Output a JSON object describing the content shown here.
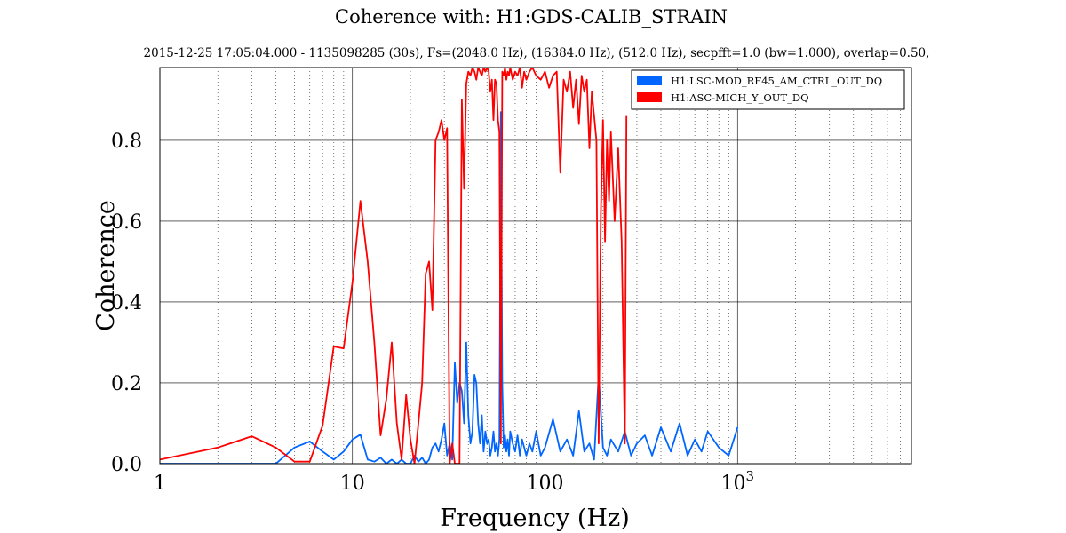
{
  "chart_data": {
    "type": "line",
    "title": "Coherence with: H1:GDS-CALIB_STRAIN",
    "subtitle": "2015-12-25 17:05:04.000 - 1135098285 (30s), Fs=(2048.0 Hz), (16384.0 Hz), (512.0 Hz), secpfft=1.0 (bw=1.000), overlap=0.50,",
    "xlabel": "Frequency (Hz)",
    "ylabel": "Coherence",
    "x_scale": "log",
    "xlim": [
      1,
      8000
    ],
    "ylim": [
      0,
      0.98
    ],
    "grid": true,
    "legend_position": "top-right",
    "x_ticks": [
      {
        "value": 1,
        "label": "1"
      },
      {
        "value": 10,
        "label": "10"
      },
      {
        "value": 100,
        "label": "100"
      },
      {
        "value": 1000,
        "label": "10",
        "sup": "3"
      }
    ],
    "y_ticks": [
      {
        "value": 0.0,
        "label": "0.0"
      },
      {
        "value": 0.2,
        "label": "0.2"
      },
      {
        "value": 0.4,
        "label": "0.4"
      },
      {
        "value": 0.6,
        "label": "0.6"
      },
      {
        "value": 0.8,
        "label": "0.8"
      }
    ],
    "series": [
      {
        "name": "H1:LSC-MOD_RF45_AM_CTRL_OUT_DQ",
        "color": "#0066ff",
        "x": [
          1,
          2,
          3,
          4,
          5,
          6,
          7,
          8,
          9,
          10,
          11,
          12,
          13,
          14,
          15,
          16,
          17,
          18,
          19,
          20,
          21,
          22,
          23,
          24,
          25,
          26,
          27,
          28,
          29,
          30,
          31,
          32,
          33,
          34,
          35,
          36,
          37,
          38,
          39,
          40,
          41,
          42,
          43,
          44,
          45,
          46,
          47,
          48,
          49,
          50,
          51,
          52,
          53,
          54,
          55,
          56,
          57,
          58,
          59,
          60,
          61,
          62,
          63,
          64,
          65,
          66,
          68,
          70,
          72,
          74,
          76,
          78,
          80,
          83,
          86,
          90,
          95,
          100,
          110,
          120,
          130,
          140,
          150,
          160,
          170,
          180,
          190,
          200,
          210,
          220,
          240,
          260,
          280,
          300,
          330,
          360,
          400,
          450,
          500,
          550,
          600,
          650,
          700,
          800,
          900,
          1000
        ],
        "y": [
          0.0,
          0.0,
          0.0,
          0.0,
          0.04,
          0.055,
          0.03,
          0.01,
          0.03,
          0.06,
          0.072,
          0.01,
          0.005,
          0.015,
          0.0,
          0.01,
          0.0,
          0.01,
          0.0,
          0.0,
          0.02,
          0.005,
          0.015,
          0.0,
          0.01,
          0.04,
          0.05,
          0.03,
          0.06,
          0.1,
          0.02,
          0.05,
          0.01,
          0.25,
          0.15,
          0.2,
          0.18,
          0.1,
          0.3,
          0.12,
          0.05,
          0.08,
          0.22,
          0.2,
          0.1,
          0.05,
          0.12,
          0.03,
          0.08,
          0.05,
          0.06,
          0.02,
          0.04,
          0.08,
          0.03,
          0.05,
          0.02,
          0.06,
          0.87,
          0.2,
          0.04,
          0.07,
          0.03,
          0.06,
          0.02,
          0.08,
          0.05,
          0.03,
          0.07,
          0.02,
          0.06,
          0.04,
          0.02,
          0.05,
          0.03,
          0.08,
          0.02,
          0.04,
          0.11,
          0.03,
          0.06,
          0.02,
          0.13,
          0.03,
          0.05,
          0.01,
          0.22,
          0.04,
          0.02,
          0.06,
          0.03,
          0.08,
          0.02,
          0.05,
          0.07,
          0.02,
          0.09,
          0.03,
          0.1,
          0.02,
          0.06,
          0.03,
          0.08,
          0.04,
          0.02,
          0.09
        ]
      },
      {
        "name": "H1:ASC-MICH_Y_OUT_DQ",
        "color": "#ff0000",
        "x": [
          1,
          2,
          3,
          4,
          5,
          6,
          7,
          8,
          9,
          10,
          11,
          12,
          13,
          14,
          15,
          16,
          17,
          18,
          19,
          20,
          21,
          22,
          23,
          24,
          25,
          26,
          27,
          28,
          29,
          30,
          31,
          32,
          33,
          34,
          35,
          36,
          37,
          38,
          39,
          40,
          41,
          42,
          43,
          44,
          45,
          46,
          47,
          48,
          49,
          50,
          51,
          52,
          53,
          54,
          55,
          56,
          57,
          58,
          59,
          60,
          61,
          62,
          63,
          64,
          65,
          66,
          68,
          70,
          72,
          74,
          76,
          78,
          80,
          83,
          86,
          90,
          95,
          100,
          105,
          110,
          115,
          120,
          125,
          130,
          135,
          140,
          145,
          150,
          155,
          160,
          165,
          170,
          175,
          180,
          185,
          190,
          195,
          200,
          205,
          210,
          215,
          220,
          230,
          240,
          250,
          260,
          265
        ],
        "y": [
          0.01,
          0.04,
          0.068,
          0.04,
          0.005,
          0.005,
          0.095,
          0.29,
          0.285,
          0.45,
          0.65,
          0.5,
          0.3,
          0.07,
          0.16,
          0.3,
          0.1,
          0.01,
          0.17,
          0.06,
          0.0,
          0.1,
          0.2,
          0.47,
          0.5,
          0.38,
          0.8,
          0.82,
          0.85,
          0.8,
          0.83,
          0.0,
          0.05,
          0.0,
          0.0,
          0.0,
          0.9,
          0.68,
          0.94,
          0.97,
          0.96,
          0.98,
          0.97,
          0.95,
          0.98,
          0.97,
          0.96,
          0.98,
          0.97,
          0.98,
          0.97,
          0.92,
          0.95,
          0.85,
          0.95,
          0.94,
          0.85,
          0.82,
          0.05,
          0.97,
          0.96,
          0.98,
          0.95,
          0.97,
          0.96,
          0.98,
          0.95,
          0.97,
          0.96,
          0.98,
          0.93,
          0.97,
          0.95,
          0.97,
          0.98,
          0.96,
          0.95,
          0.97,
          0.93,
          0.96,
          0.97,
          0.72,
          0.95,
          0.92,
          0.97,
          0.88,
          0.95,
          0.84,
          0.96,
          0.92,
          0.95,
          0.78,
          0.92,
          0.86,
          0.8,
          0.05,
          0.62,
          0.85,
          0.55,
          0.8,
          0.65,
          0.82,
          0.6,
          0.78,
          0.55,
          0.05,
          0.86
        ]
      }
    ]
  }
}
